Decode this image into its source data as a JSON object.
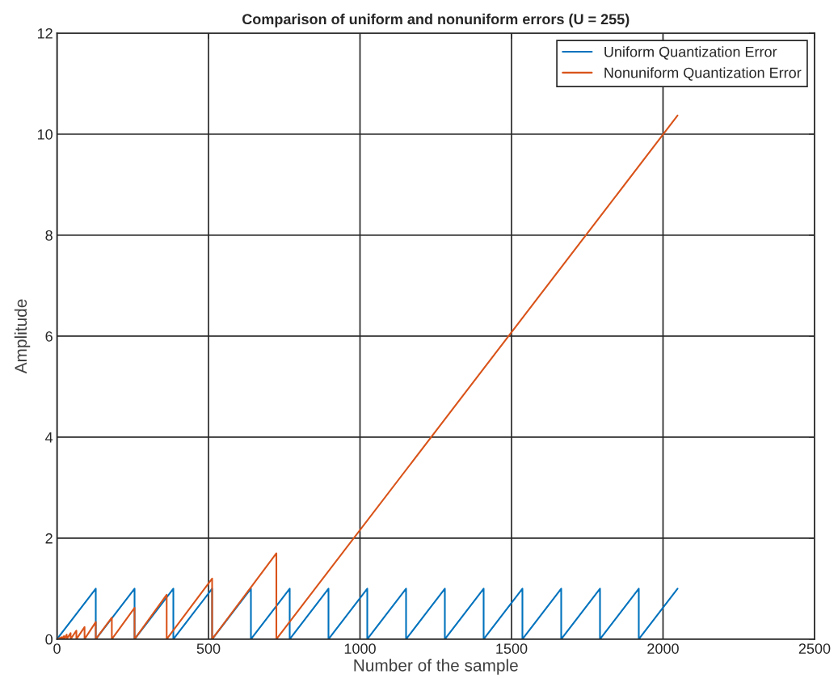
{
  "chart_data": {
    "type": "line",
    "title": "Comparison of uniform and nonuniform errors (U = 255)",
    "xlabel": "Number of the sample",
    "ylabel": "Amplitude",
    "xlim": [
      0,
      2500
    ],
    "xticks": [
      0,
      500,
      1000,
      1500,
      2000,
      2500
    ],
    "ylim": [
      0,
      12
    ],
    "yticks": [
      0,
      2,
      4,
      6,
      8,
      10,
      12
    ],
    "grid": true,
    "legend": "top right",
    "line_style": "solid",
    "marker": "none",
    "series": [
      {
        "name": "Uniform Quantization Error",
        "color": "#0072bd",
        "x": [
          0,
          128,
          128,
          256,
          256,
          384,
          384,
          512,
          512,
          640,
          640,
          768,
          768,
          896,
          896,
          1024,
          1024,
          1152,
          1152,
          1280,
          1280,
          1408,
          1408,
          1536,
          1536,
          1664,
          1664,
          1792,
          1792,
          1920,
          1920,
          2048
        ],
        "values": [
          0,
          1,
          0,
          1,
          0,
          1,
          0,
          1,
          0,
          1,
          0,
          1,
          0,
          1,
          0,
          1,
          0,
          1,
          0,
          1,
          0,
          1,
          0,
          1,
          0,
          1,
          0,
          1,
          0,
          1,
          0,
          1
        ]
      },
      {
        "name": "Nonuniform Quantization Error",
        "color": "#d95319",
        "x": [
          0,
          16,
          16,
          23,
          23,
          32,
          32,
          45,
          45,
          64,
          64,
          91,
          91,
          128,
          128,
          181,
          181,
          256,
          256,
          362,
          362,
          512,
          512,
          724,
          724,
          2048
        ],
        "values": [
          0,
          0.04,
          0,
          0.06,
          0,
          0.09,
          0,
          0.12,
          0,
          0.17,
          0,
          0.24,
          0,
          0.34,
          0,
          0.43,
          0,
          0.62,
          0,
          0.88,
          0,
          1.2,
          0,
          1.7,
          0,
          10.37
        ]
      }
    ]
  }
}
